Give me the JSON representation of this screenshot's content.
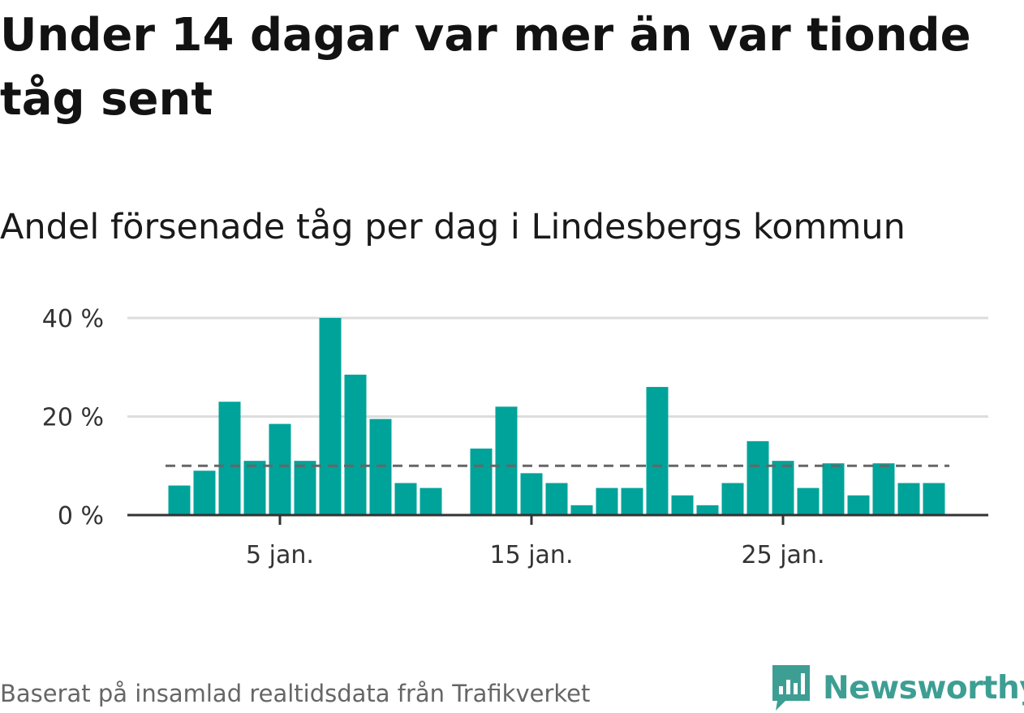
{
  "title": "Under 14 dagar var mer än var tionde tåg sent",
  "subtitle": "Andel försenade tåg per dag i Lindesbergs kommun",
  "source": "Baserat på insamlad realtidsdata från Trafikverket",
  "brand": {
    "name": "Newsworthy",
    "icon": "newsworthy-logo-icon",
    "color": "#3d9e93"
  },
  "colors": {
    "bar": "#00a39a",
    "reference_line": "#666666",
    "grid": "#dddddd",
    "axis": "#333333"
  },
  "chart_data": {
    "type": "bar",
    "x": [
      "1 jan.",
      "2 jan.",
      "3 jan.",
      "4 jan.",
      "5 jan.",
      "6 jan.",
      "7 jan.",
      "8 jan.",
      "9 jan.",
      "10 jan.",
      "11 jan.",
      "12 jan.",
      "13 jan.",
      "14 jan.",
      "15 jan.",
      "16 jan.",
      "17 jan.",
      "18 jan.",
      "19 jan.",
      "20 jan.",
      "21 jan.",
      "22 jan.",
      "23 jan.",
      "24 jan.",
      "25 jan.",
      "26 jan.",
      "27 jan.",
      "28 jan.",
      "29 jan.",
      "30 jan.",
      "31 jan."
    ],
    "values": [
      6,
      9,
      23,
      11,
      18.5,
      11,
      40,
      28.5,
      19.5,
      6.5,
      5.5,
      null,
      13.5,
      22,
      8.5,
      6.5,
      2,
      5.5,
      5.5,
      26,
      4,
      2,
      6.5,
      15,
      11,
      5.5,
      10.5,
      4,
      10.5,
      6.5,
      6.5
    ],
    "unit": "%",
    "ylim": [
      0,
      40
    ],
    "yticks": [
      0,
      20,
      40
    ],
    "ytick_labels": [
      "0 %",
      "20 %",
      "40 %"
    ],
    "xticks": [
      "5 jan.",
      "15 jan.",
      "25 jan."
    ],
    "reference_line": {
      "value": 10,
      "style": "dashed"
    },
    "grid": true,
    "legend": false
  }
}
